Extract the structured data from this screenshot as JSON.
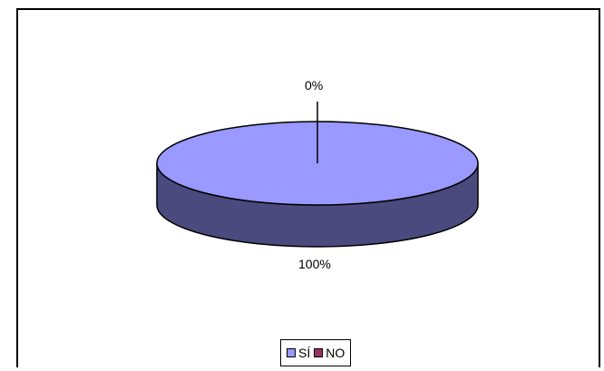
{
  "chart_data": {
    "type": "pie",
    "title": "",
    "categories": [
      "SÍ",
      "NO"
    ],
    "values": [
      100,
      0
    ],
    "data_labels": [
      "100%",
      "0%"
    ],
    "colors": [
      "#9999ff",
      "#993366"
    ],
    "side_colors": [
      "#4a4a7e",
      "#5a1e3c"
    ],
    "legend_position": "bottom",
    "style": "3d-pie"
  }
}
